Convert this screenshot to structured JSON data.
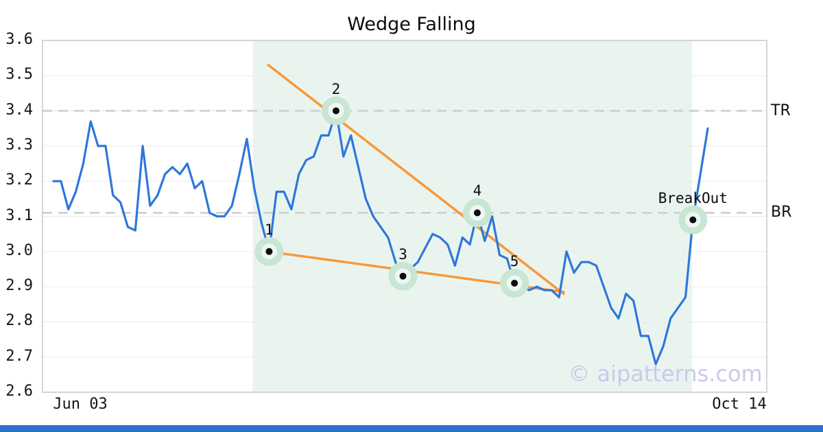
{
  "watermark": {
    "text": "© aipatterns.com",
    "color": "#c8caee"
  },
  "footer": {
    "color": "#2e6fca"
  },
  "chart_data": {
    "type": "line",
    "title": "Wedge Falling",
    "xlabel": "",
    "ylabel": "",
    "grid": true,
    "x_axis": {
      "start_label": "Jun 03",
      "end_label": "Oct 14"
    },
    "y_axis": {
      "min": 2.6,
      "max": 3.6,
      "step": 0.1,
      "ticks": [
        3.6,
        3.5,
        3.4,
        3.3,
        3.2,
        3.1,
        3.0,
        2.9,
        2.8,
        2.7,
        2.6
      ]
    },
    "series": [
      {
        "name": "price",
        "color": "#2d77db",
        "values": [
          3.2,
          3.2,
          3.12,
          3.17,
          3.25,
          3.37,
          3.3,
          3.3,
          3.16,
          3.14,
          3.07,
          3.06,
          3.3,
          3.13,
          3.16,
          3.22,
          3.24,
          3.22,
          3.25,
          3.18,
          3.2,
          3.11,
          3.1,
          3.1,
          3.13,
          3.22,
          3.32,
          3.18,
          3.08,
          3.0,
          3.17,
          3.17,
          3.12,
          3.22,
          3.26,
          3.27,
          3.33,
          3.33,
          3.4,
          3.27,
          3.33,
          3.24,
          3.15,
          3.1,
          3.07,
          3.04,
          2.97,
          2.93,
          2.95,
          2.97,
          3.01,
          3.05,
          3.04,
          3.02,
          2.96,
          3.04,
          3.02,
          3.11,
          3.03,
          3.1,
          2.99,
          2.98,
          2.91,
          2.9,
          2.89,
          2.9,
          2.89,
          2.89,
          2.87,
          3.0,
          2.94,
          2.97,
          2.97,
          2.96,
          2.9,
          2.84,
          2.81,
          2.88,
          2.86,
          2.76,
          2.76,
          2.68,
          2.73,
          2.81,
          2.84,
          2.87,
          3.09,
          3.22,
          3.35
        ]
      }
    ],
    "levels": [
      {
        "label": "TR",
        "value": 3.4
      },
      {
        "label": "BR",
        "value": 3.11
      }
    ],
    "pattern_region": {
      "start_index": 26.8,
      "end_index": 85.9,
      "color": "#eaf4ef"
    },
    "trendlines": [
      {
        "name": "upper",
        "from": {
          "index": 28.9,
          "value": 3.53
        },
        "to": {
          "index": 68.6,
          "value": 2.88
        }
      },
      {
        "name": "lower",
        "from": {
          "index": 28.8,
          "value": 3.0
        },
        "to": {
          "index": 68.6,
          "value": 2.885
        }
      }
    ],
    "trendline_color": "#f89838",
    "marker_halo_color": "#c8e6d2",
    "marker_inner_color": "#edf7f1",
    "marker_dot_color": "#0d0d0d",
    "markers": [
      {
        "label": "1",
        "index": 29,
        "value": 3.0
      },
      {
        "label": "2",
        "index": 38,
        "value": 3.4
      },
      {
        "label": "3",
        "index": 47,
        "value": 2.93
      },
      {
        "label": "4",
        "index": 57,
        "value": 3.11
      },
      {
        "label": "5",
        "index": 62,
        "value": 2.91
      },
      {
        "label": "BreakOut",
        "index": 86,
        "value": 3.09
      }
    ]
  }
}
